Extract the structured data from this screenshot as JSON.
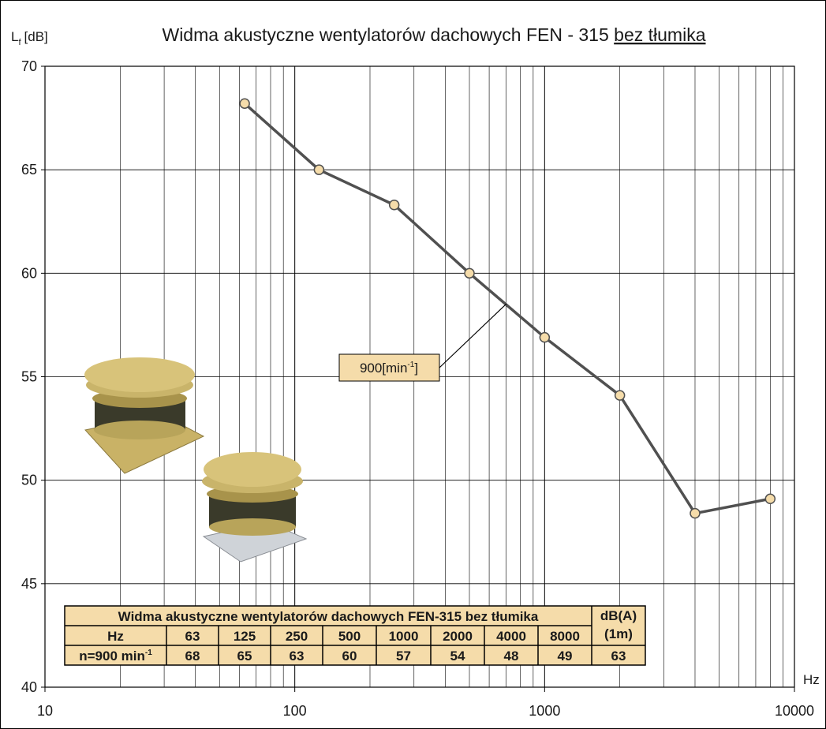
{
  "chart_data": {
    "type": "line",
    "title": "Widma akustyczne wentylatorów dachowych FEN - 315",
    "title_underlined": "bez tłumika",
    "y_label": {
      "main": "L",
      "sub": "f",
      "unit": "[dB]"
    },
    "x_label": "Hz",
    "x": [
      63,
      125,
      250,
      500,
      1000,
      2000,
      4000,
      8000
    ],
    "values": [
      68.2,
      65,
      63.3,
      60,
      56.9,
      54.1,
      48.4,
      49.1
    ],
    "color": "#505050",
    "marker_color": "#f5dcaa",
    "xlim": [
      10,
      10000
    ],
    "xticks": [
      10,
      100,
      1000,
      10000
    ],
    "x_log": true,
    "ylim": [
      40,
      70
    ],
    "yticks": [
      40,
      45,
      50,
      55,
      60,
      65,
      70
    ],
    "grid": true,
    "minor_grid": true,
    "annotation": {
      "text": "900[min",
      "sup": "-1",
      "end": "]"
    },
    "table": {
      "title": "Widma akustyczne wentylatorów dachowych FEN-315 bez tłumika",
      "dba_header": [
        "dB(A)",
        "(1m)"
      ],
      "row_hz": {
        "label": "Hz",
        "values": [
          63,
          125,
          250,
          500,
          1000,
          2000,
          4000,
          8000
        ]
      },
      "row_n": {
        "label": "n=900 min",
        "label_sup": "-1",
        "values": [
          68,
          65,
          63,
          60,
          57,
          54,
          48,
          49
        ],
        "dba": 63
      }
    }
  }
}
